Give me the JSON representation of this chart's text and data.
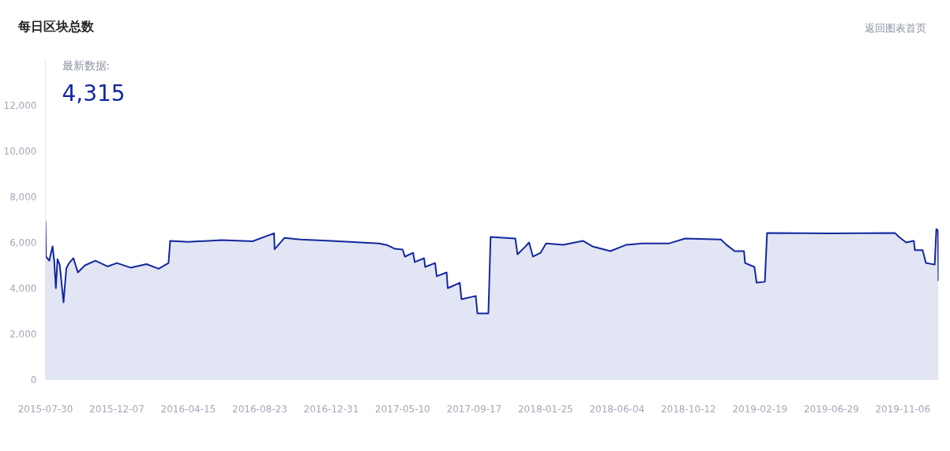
{
  "chart_data": {
    "type": "area",
    "title": "每日区块总数",
    "annotations": [
      "返回图表首页",
      "最新数据:",
      "4,315"
    ],
    "x": [
      "2015-07-30",
      "2015-07-31",
      "2015-08-06",
      "2015-08-12",
      "2015-08-15",
      "2015-08-18",
      "2015-08-21",
      "2015-08-25",
      "2015-09-01",
      "2015-09-06",
      "2015-09-11",
      "2015-09-19",
      "2015-09-27",
      "2015-10-10",
      "2015-10-29",
      "2015-11-20",
      "2015-12-07",
      "2016-01-01",
      "2016-01-30",
      "2016-02-21",
      "2016-03-10",
      "2016-03-13",
      "2016-04-15",
      "2016-06-15",
      "2016-08-10",
      "2016-09-18",
      "2016-09-19",
      "2016-10-07",
      "2016-11-05",
      "2016-12-31",
      "2017-03-28",
      "2017-04-11",
      "2017-04-26",
      "2017-05-10",
      "2017-05-14",
      "2017-05-29",
      "2017-06-01",
      "2017-06-18",
      "2017-06-20",
      "2017-07-08",
      "2017-07-11",
      "2017-07-29",
      "2017-07-31",
      "2017-08-22",
      "2017-08-25",
      "2017-09-20",
      "2017-09-23",
      "2017-10-13",
      "2017-10-17",
      "2017-12-01",
      "2017-12-05",
      "2017-12-18",
      "2017-12-26",
      "2018-01-02",
      "2018-01-16",
      "2018-01-26",
      "2018-02-26",
      "2018-04-03",
      "2018-04-20",
      "2018-05-23",
      "2018-06-21",
      "2018-07-20",
      "2018-09-07",
      "2018-10-06",
      "2018-12-10",
      "2018-12-20",
      "2019-01-04",
      "2019-01-21",
      "2019-01-23",
      "2019-02-09",
      "2019-02-13",
      "2019-02-28",
      "2019-03-04",
      "2019-06-25",
      "2019-10-23",
      "2019-10-30",
      "2019-11-12",
      "2019-11-26",
      "2019-11-28",
      "2019-12-12",
      "2019-12-18",
      "2020-01-03",
      "2020-01-06",
      "2020-01-09",
      "2020-01-10"
    ],
    "series": [
      {
        "color": "#1327a0",
        "values": [
          6930,
          5380,
          5200,
          5830,
          5200,
          4000,
          5270,
          5030,
          3380,
          4860,
          5100,
          5310,
          4690,
          5000,
          5200,
          4950,
          5100,
          4900,
          5050,
          4850,
          5100,
          6070,
          6030,
          6100,
          6050,
          6400,
          5700,
          6200,
          6130,
          6070,
          5960,
          5890,
          5720,
          5690,
          5380,
          5550,
          5140,
          5310,
          4930,
          5100,
          4520,
          4690,
          4000,
          4240,
          3520,
          3660,
          2900,
          2900,
          6240,
          6170,
          5480,
          5790,
          6000,
          5380,
          5550,
          5960,
          5900,
          6070,
          5830,
          5620,
          5900,
          5960,
          5960,
          6170,
          6130,
          5900,
          5620,
          5620,
          5100,
          4930,
          4240,
          4280,
          6410,
          6400,
          6410,
          6240,
          6000,
          6070,
          5660,
          5660,
          5100,
          5030,
          6590,
          6520,
          4315
        ]
      }
    ],
    "xlim": [
      "2015-07-30",
      "2020-01-10"
    ],
    "xticks": [
      "2015-07-30",
      "2015-12-07",
      "2016-04-15",
      "2016-08-23",
      "2016-12-31",
      "2017-05-10",
      "2017-09-17",
      "2018-01-25",
      "2018-06-04",
      "2018-10-12",
      "2019-02-19",
      "2019-06-29",
      "2019-11-06"
    ],
    "ylim": [
      0,
      14000
    ],
    "yticks": [
      {
        "value": 0,
        "label": "0"
      },
      {
        "value": 2000,
        "label": "2,000"
      },
      {
        "value": 4000,
        "label": "4,000"
      },
      {
        "value": 6000,
        "label": "6,000"
      },
      {
        "value": 8000,
        "label": "8,000"
      },
      {
        "value": 10000,
        "label": "10,000"
      },
      {
        "value": 12000,
        "label": "12,000"
      }
    ],
    "grid": false
  }
}
